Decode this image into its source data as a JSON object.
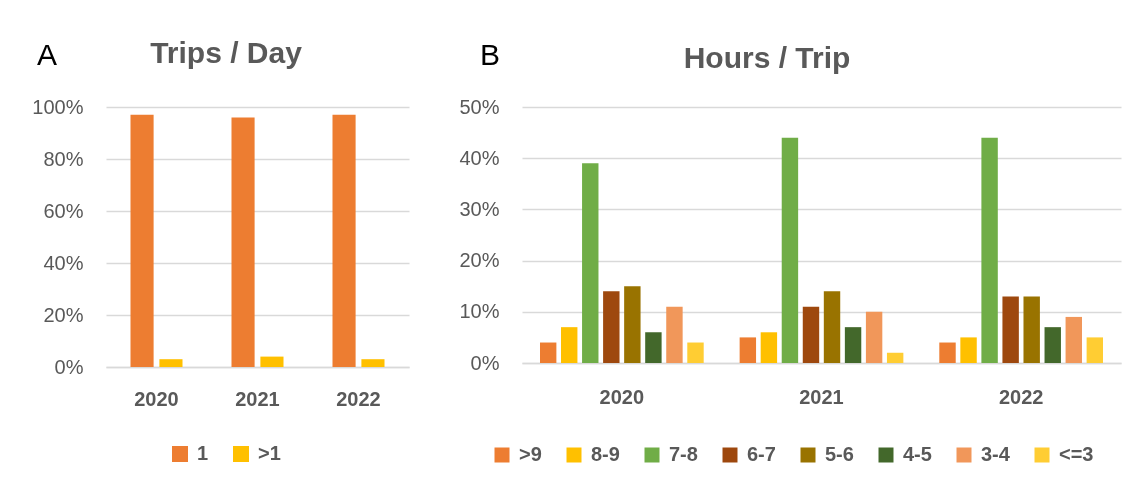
{
  "chart_data": [
    {
      "type": "bar",
      "title": "Trips / Day",
      "annotations": [
        "A"
      ],
      "categories": [
        "2020",
        "2021",
        "2022"
      ],
      "series": [
        {
          "name": "1",
          "color": "#ed7d31",
          "values": [
            97,
            96,
            97
          ]
        },
        {
          "name": ">1",
          "color": "#ffc000",
          "values": [
            3,
            4,
            3
          ]
        }
      ],
      "ylim": [
        0,
        100
      ],
      "yticks": [
        {
          "value": 0,
          "label": "0%"
        },
        {
          "value": 20,
          "label": "20%"
        },
        {
          "value": 40,
          "label": "40%"
        },
        {
          "value": 60,
          "label": "60%"
        },
        {
          "value": 80,
          "label": "80%"
        },
        {
          "value": 100,
          "label": "100%"
        }
      ],
      "grid": "y",
      "legend": "bottom"
    },
    {
      "type": "bar",
      "title": "Hours / Trip",
      "annotations": [
        "B"
      ],
      "categories": [
        "2020",
        "2021",
        "2022"
      ],
      "series": [
        {
          "name": ">9",
          "color": "#ed7d31",
          "values": [
            4,
            5,
            4
          ]
        },
        {
          "name": "8-9",
          "color": "#ffc000",
          "values": [
            7,
            6,
            5
          ]
        },
        {
          "name": "7-8",
          "color": "#70ad47",
          "values": [
            39,
            44,
            44
          ]
        },
        {
          "name": "6-7",
          "color": "#9e480e",
          "values": [
            14,
            11,
            13
          ]
        },
        {
          "name": "5-6",
          "color": "#997300",
          "values": [
            15,
            14,
            13
          ]
        },
        {
          "name": "4-5",
          "color": "#43682b",
          "values": [
            6,
            7,
            7
          ]
        },
        {
          "name": "3-4",
          "color": "#f1975a",
          "values": [
            11,
            10,
            9
          ]
        },
        {
          "name": "<=3",
          "color": "#ffcd33",
          "values": [
            4,
            2,
            5
          ]
        }
      ],
      "ylim": [
        0,
        50
      ],
      "yticks": [
        {
          "value": 0,
          "label": "0%"
        },
        {
          "value": 10,
          "label": "10%"
        },
        {
          "value": 20,
          "label": "20%"
        },
        {
          "value": 30,
          "label": "30%"
        },
        {
          "value": 40,
          "label": "40%"
        },
        {
          "value": 50,
          "label": "50%"
        }
      ],
      "grid": "y",
      "legend": "bottom"
    }
  ]
}
